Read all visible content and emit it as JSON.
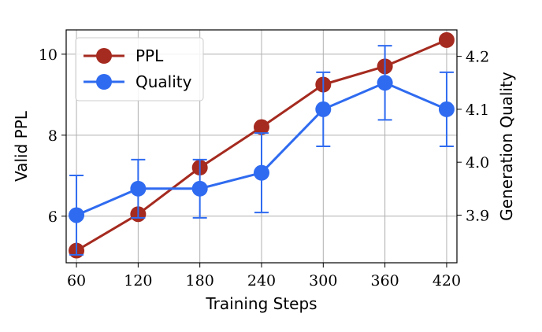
{
  "chart_data": {
    "type": "line",
    "xlabel": "Training Steps",
    "ylabel_left": "Valid PPL",
    "ylabel_right": "Generation Quality",
    "x": [
      60,
      120,
      180,
      240,
      300,
      360,
      420
    ],
    "x_ticks": [
      "60",
      "120",
      "180",
      "240",
      "300",
      "360",
      "420"
    ],
    "ylim_left": [
      4.85,
      10.6
    ],
    "yticks_left": [
      "6",
      "8",
      "10"
    ],
    "ylim_right": [
      3.81,
      4.25
    ],
    "yticks_right": [
      "3.9",
      "4.0",
      "4.1",
      "4.2"
    ],
    "grid": true,
    "legend_position": "top-left",
    "series": [
      {
        "name": "PPL",
        "axis": "left",
        "color": "#a52a1f",
        "values": [
          5.15,
          6.05,
          7.2,
          8.2,
          9.25,
          9.7,
          10.35
        ]
      },
      {
        "name": "Quality",
        "axis": "right",
        "color": "#2f6bf0",
        "values": [
          3.9,
          3.95,
          3.95,
          3.98,
          4.1,
          4.15,
          4.1
        ],
        "error": [
          0.075,
          0.055,
          0.055,
          0.075,
          0.07,
          0.07,
          0.07
        ]
      }
    ]
  }
}
